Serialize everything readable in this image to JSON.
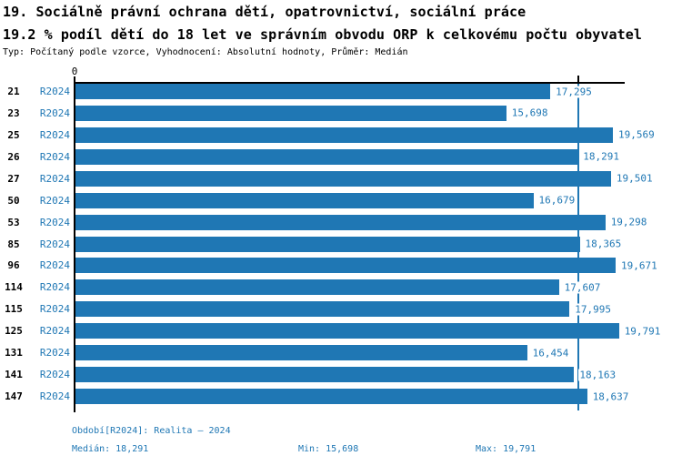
{
  "title": {
    "line1": "19. Sociálně právní ochrana dětí, opatrovnictví, sociální práce",
    "line2": "19.2 % podíl dětí do 18 let ve správním obvodu ORP k celkovému počtu obyvatel",
    "line3": "Typ: Počítaný podle vzorce, Vyhodnocení: Absolutní hodnoty, Průměr: Medián"
  },
  "chart_data": {
    "type": "bar",
    "orientation": "horizontal",
    "categories": [
      "21",
      "23",
      "25",
      "26",
      "27",
      "50",
      "53",
      "85",
      "96",
      "114",
      "115",
      "125",
      "131",
      "141",
      "147"
    ],
    "series": [
      {
        "name": "R2024",
        "values": [
          17295,
          15698,
          19569,
          18291,
          19501,
          16679,
          19298,
          18365,
          19671,
          17607,
          17995,
          19791,
          16454,
          18163,
          18637
        ]
      }
    ],
    "value_labels": [
      "17,295",
      "15,698",
      "19,569",
      "18,291",
      "19,501",
      "16,679",
      "19,298",
      "18,365",
      "19,671",
      "17,607",
      "17,995",
      "19,791",
      "16,454",
      "18,163",
      "18,637"
    ],
    "x_ticks": [
      "0"
    ],
    "xlim": [
      0,
      20000
    ],
    "reference_line": {
      "value": 18291,
      "meaning": "median"
    },
    "bar_color": "#1f77b4",
    "reference_line_color": "#1f77b4",
    "axis_color": "#000000",
    "grid": false,
    "legend": "none"
  },
  "footer": {
    "period": "Období[R2024]: Realita – 2024",
    "median": "Medián: 18,291",
    "min": "Min: 15,698",
    "max": "Max: 19,791"
  }
}
